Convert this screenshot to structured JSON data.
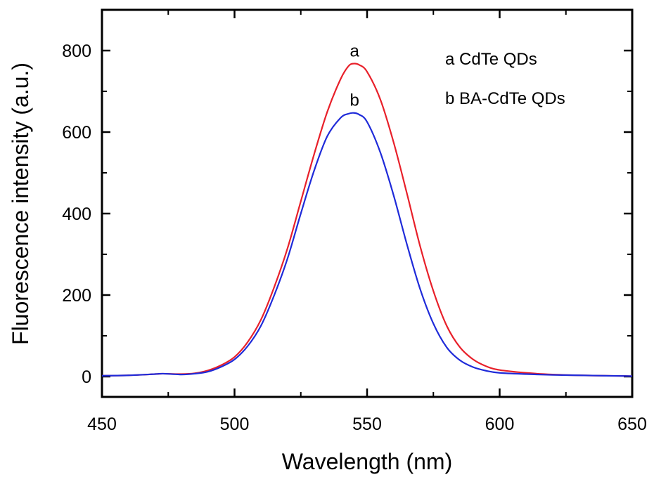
{
  "chart_data": {
    "type": "line",
    "xlabel": "Wavelength (nm)",
    "ylabel": "Fluorescence intensity (a.u.)",
    "xlim": [
      450,
      650
    ],
    "ylim": [
      -50,
      900
    ],
    "xticks": [
      450,
      500,
      550,
      600,
      650
    ],
    "yticks": [
      0,
      200,
      400,
      600,
      800
    ],
    "xtick_labels": [
      "450",
      "500",
      "550",
      "600",
      "650"
    ],
    "ytick_labels": [
      "0",
      "200",
      "400",
      "600",
      "800"
    ],
    "grid": false,
    "legend_position": "top-right",
    "legend": [
      "a CdTe QDs",
      "b BA-CdTe QDs"
    ],
    "series": [
      {
        "name": "a CdTe QDs",
        "label": "a",
        "color": "#e8202a",
        "x": [
          450,
          460,
          470,
          473,
          480,
          485,
          490,
          495,
          500,
          505,
          510,
          515,
          520,
          525,
          530,
          535,
          540,
          543,
          545,
          547,
          550,
          555,
          560,
          565,
          570,
          575,
          580,
          585,
          590,
          595,
          600,
          610,
          620,
          630,
          640,
          650
        ],
        "y": [
          2,
          3,
          6,
          7,
          6,
          8,
          15,
          28,
          48,
          85,
          140,
          220,
          315,
          430,
          545,
          650,
          730,
          762,
          768,
          765,
          748,
          680,
          575,
          450,
          320,
          210,
          125,
          72,
          42,
          25,
          16,
          9,
          5,
          3,
          2,
          1
        ]
      },
      {
        "name": "b BA-CdTe QDs",
        "label": "b",
        "color": "#1f2bd9",
        "x": [
          450,
          460,
          470,
          473,
          480,
          485,
          490,
          495,
          500,
          505,
          510,
          515,
          520,
          525,
          530,
          535,
          540,
          543,
          545,
          547,
          550,
          555,
          560,
          565,
          570,
          575,
          580,
          585,
          590,
          595,
          600,
          610,
          620,
          630,
          640,
          650
        ],
        "y": [
          2,
          3,
          6,
          7,
          5,
          7,
          12,
          24,
          42,
          75,
          125,
          200,
          290,
          400,
          505,
          590,
          635,
          645,
          647,
          643,
          625,
          550,
          445,
          325,
          215,
          130,
          72,
          40,
          23,
          14,
          9,
          6,
          4,
          3,
          2,
          1
        ]
      }
    ]
  }
}
